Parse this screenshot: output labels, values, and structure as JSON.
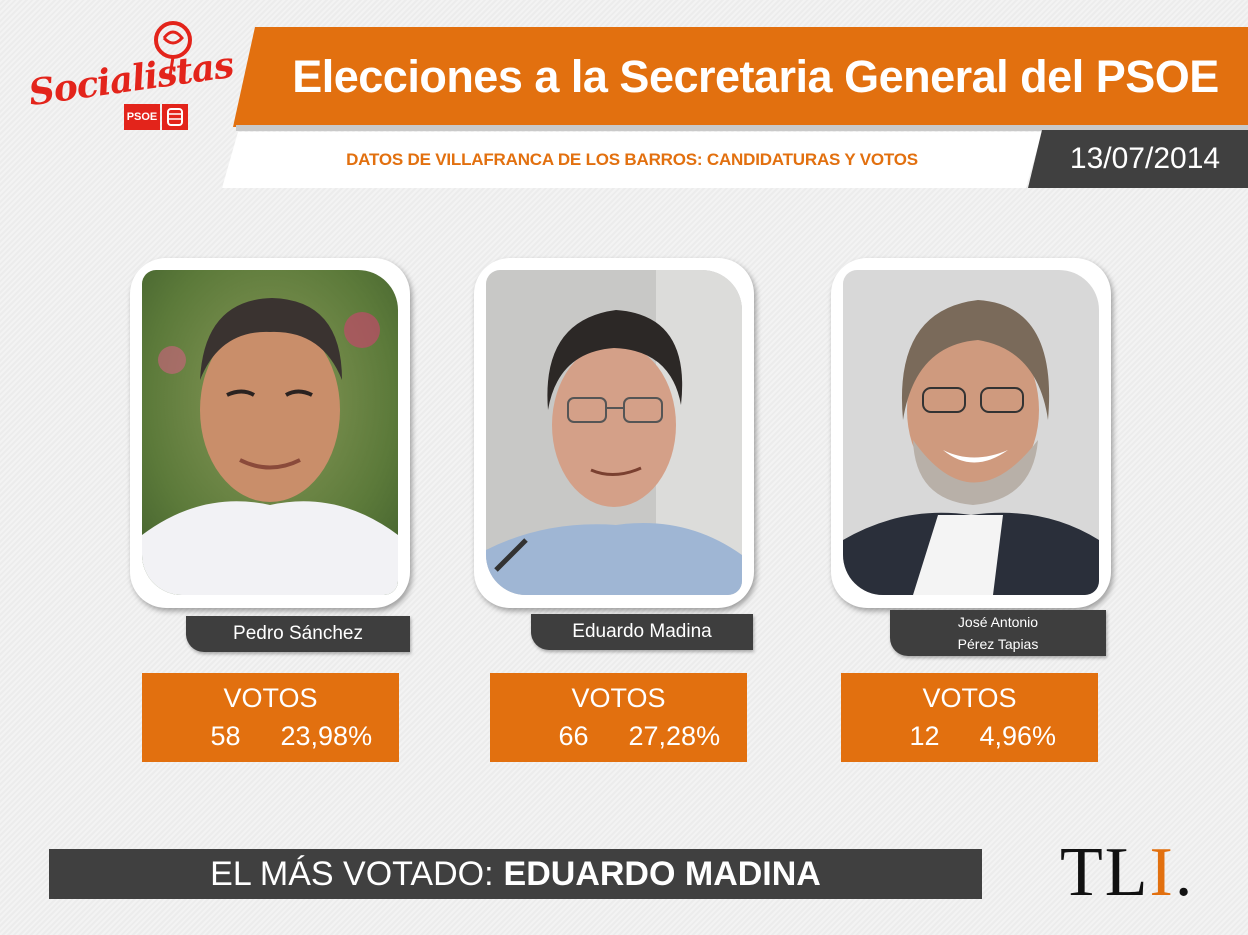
{
  "logo": {
    "text": "Socialistas",
    "badge": "PSOE"
  },
  "header": {
    "title": "Elecciones a la Secretaria General del PSOE",
    "subtitle": "DATOS DE VILLAFRANCA DE LOS BARROS: CANDIDATURAS Y VOTOS",
    "date": "13/07/2014"
  },
  "candidates": [
    {
      "name": "Pedro Sánchez",
      "votes_label": "VOTOS",
      "votes": "58",
      "percent": "23,98%"
    },
    {
      "name": "Eduardo Madina",
      "votes_label": "VOTOS",
      "votes": "66",
      "percent": "27,28%"
    },
    {
      "name_line1": "José Antonio",
      "name_line2": "Pérez Tapias",
      "votes_label": "VOTOS",
      "votes": "12",
      "percent": "4,96%"
    }
  ],
  "winner": {
    "prefix": "EL MÁS VOTADO:",
    "name": "EDUARDO MADINA"
  },
  "brand": {
    "tl": "TL",
    "i": "I",
    "dot": "."
  },
  "colors": {
    "accent": "#e2700f",
    "dark": "#404040",
    "psoe_red": "#e3241b"
  }
}
